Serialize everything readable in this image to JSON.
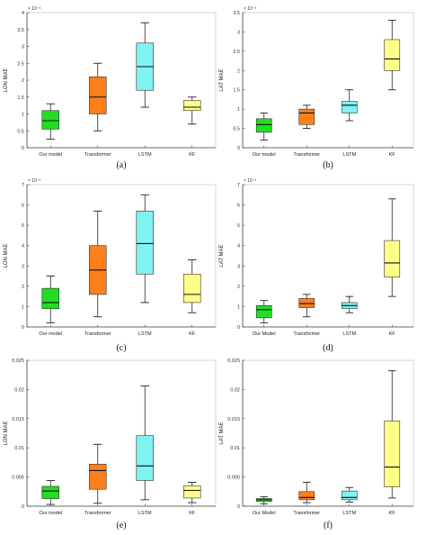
{
  "chart_data": [
    {
      "id": "a",
      "type": "boxplot",
      "caption": "(a)",
      "ylabel": "LON  MAE",
      "multiplier": "× 10⁻³",
      "ylim": [
        0,
        4
      ],
      "yticks": [
        "0",
        "0.5",
        "1",
        "1.5",
        "2",
        "2.5",
        "3",
        "3.5",
        "4"
      ],
      "categories": [
        "Our model",
        "Transformer",
        "LSTM",
        "KF"
      ],
      "series": [
        {
          "category": "Our model",
          "min": 0.25,
          "q1": 0.55,
          "median": 0.8,
          "q3": 1.1,
          "max": 1.3
        },
        {
          "category": "Transformer",
          "min": 0.5,
          "q1": 1.0,
          "median": 1.5,
          "q3": 2.1,
          "max": 2.5
        },
        {
          "category": "LSTM",
          "min": 1.2,
          "q1": 1.7,
          "median": 2.4,
          "q3": 3.1,
          "max": 3.7
        },
        {
          "category": "KF",
          "min": 0.7,
          "q1": 1.1,
          "median": 1.2,
          "q3": 1.4,
          "max": 1.5
        }
      ]
    },
    {
      "id": "b",
      "type": "boxplot",
      "caption": "(b)",
      "ylabel": "LAT  MAE",
      "multiplier": "× 10⁻³",
      "ylim": [
        0,
        3.5
      ],
      "yticks": [
        "0",
        "0.5",
        "1",
        "1.5",
        "2",
        "2.5",
        "3",
        "3.5"
      ],
      "categories": [
        "Our model",
        "Transformer",
        "LSTM",
        "KF"
      ],
      "series": [
        {
          "category": "Our model",
          "min": 0.2,
          "q1": 0.4,
          "median": 0.6,
          "q3": 0.75,
          "max": 0.9
        },
        {
          "category": "Transformer",
          "min": 0.5,
          "q1": 0.6,
          "median": 0.9,
          "q3": 1.0,
          "max": 1.1
        },
        {
          "category": "LSTM",
          "min": 0.7,
          "q1": 0.9,
          "median": 1.1,
          "q3": 1.2,
          "max": 1.5
        },
        {
          "category": "KF",
          "min": 1.5,
          "q1": 2.0,
          "median": 2.3,
          "q3": 2.8,
          "max": 3.3
        }
      ]
    },
    {
      "id": "c",
      "type": "boxplot",
      "caption": "(c)",
      "ylabel": "LON  MAE",
      "multiplier": "× 10⁻³",
      "ylim": [
        0,
        7
      ],
      "yticks": [
        "0",
        "1",
        "2",
        "3",
        "4",
        "5",
        "6",
        "7"
      ],
      "categories": [
        "Our model",
        "Transformer",
        "LSTM",
        "KF"
      ],
      "series": [
        {
          "category": "Our model",
          "min": 0.2,
          "q1": 0.9,
          "median": 1.2,
          "q3": 1.9,
          "max": 2.5
        },
        {
          "category": "Transformer",
          "min": 0.5,
          "q1": 1.6,
          "median": 2.8,
          "q3": 4.0,
          "max": 5.7
        },
        {
          "category": "LSTM",
          "min": 1.2,
          "q1": 2.6,
          "median": 4.1,
          "q3": 5.7,
          "max": 6.5
        },
        {
          "category": "KF",
          "min": 0.7,
          "q1": 1.2,
          "median": 1.6,
          "q3": 2.6,
          "max": 3.3
        }
      ]
    },
    {
      "id": "d",
      "type": "boxplot",
      "caption": "(d)",
      "ylabel": "LAT  MAE",
      "multiplier": "× 10⁻³",
      "ylim": [
        0,
        7
      ],
      "yticks": [
        "0",
        "1",
        "2",
        "3",
        "4",
        "5",
        "6",
        "7"
      ],
      "categories": [
        "Our Model",
        "Transformer",
        "LSTM",
        "KF"
      ],
      "series": [
        {
          "category": "Our Model",
          "min": 0.2,
          "q1": 0.45,
          "median": 0.85,
          "q3": 1.05,
          "max": 1.3
        },
        {
          "category": "Transformer",
          "min": 0.5,
          "q1": 0.95,
          "median": 1.15,
          "q3": 1.4,
          "max": 1.6
        },
        {
          "category": "LSTM",
          "min": 0.7,
          "q1": 0.9,
          "median": 1.05,
          "q3": 1.2,
          "max": 1.5
        },
        {
          "category": "KF",
          "min": 1.5,
          "q1": 2.45,
          "median": 3.15,
          "q3": 4.25,
          "max": 6.3
        }
      ]
    },
    {
      "id": "e",
      "type": "boxplot",
      "caption": "(e)",
      "ylabel": "LON  MAE",
      "multiplier": "",
      "ylim": [
        0,
        0.025
      ],
      "yticks": [
        "0",
        "0.005",
        "0.01",
        "0.015",
        "0.02",
        "0.025"
      ],
      "categories": [
        "Our model",
        "Transformer",
        "LSTM",
        "KF"
      ],
      "series": [
        {
          "category": "Our model",
          "min": 0.0003,
          "q1": 0.0013,
          "median": 0.0026,
          "q3": 0.0034,
          "max": 0.0044
        },
        {
          "category": "Transformer",
          "min": 0.0005,
          "q1": 0.0029,
          "median": 0.0061,
          "q3": 0.0072,
          "max": 0.0106
        },
        {
          "category": "LSTM",
          "min": 0.0011,
          "q1": 0.0044,
          "median": 0.0069,
          "q3": 0.0121,
          "max": 0.0206
        },
        {
          "category": "KF",
          "min": 0.0006,
          "q1": 0.0014,
          "median": 0.0027,
          "q3": 0.0035,
          "max": 0.0041
        }
      ]
    },
    {
      "id": "f",
      "type": "boxplot",
      "caption": "(f)",
      "ylabel": "LAT  MAE",
      "multiplier": "",
      "ylim": [
        0,
        0.025
      ],
      "yticks": [
        "0",
        "0.005",
        "0.01",
        "0.015",
        "0.02",
        "0.025"
      ],
      "categories": [
        "Our Model",
        "Transformer",
        "LSTM",
        "KF"
      ],
      "series": [
        {
          "category": "Our Model",
          "min": 0.0004,
          "q1": 0.0008,
          "median": 0.0011,
          "q3": 0.0013,
          "max": 0.0016
        },
        {
          "category": "Transformer",
          "min": 0.0006,
          "q1": 0.0011,
          "median": 0.0015,
          "q3": 0.0025,
          "max": 0.0041
        },
        {
          "category": "LSTM",
          "min": 0.0007,
          "q1": 0.0011,
          "median": 0.0015,
          "q3": 0.0026,
          "max": 0.0032
        },
        {
          "category": "KF",
          "min": 0.0014,
          "q1": 0.0033,
          "median": 0.0067,
          "q3": 0.0146,
          "max": 0.0232
        }
      ]
    }
  ],
  "colors": {
    "box_fills": [
      "#22dd22",
      "#ff7f1a",
      "#7ff2f2",
      "#ffff88"
    ],
    "axis": "#444444",
    "median": "#111111"
  }
}
